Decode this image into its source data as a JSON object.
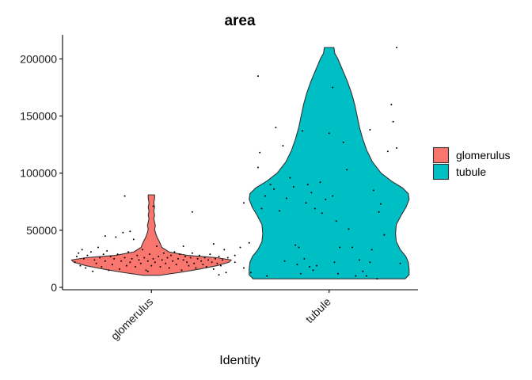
{
  "chart_data": {
    "type": "violin",
    "title": "area",
    "xlabel": "Identity",
    "ylabel": "",
    "categories": [
      "glomerulus",
      "tubule"
    ],
    "colors": {
      "glomerulus": "#F8766D",
      "tubule": "#00BFC4"
    },
    "ylim": [
      0,
      210000
    ],
    "yticks": [
      0,
      50000,
      100000,
      150000,
      200000
    ],
    "ytick_labels": [
      "0",
      "50000",
      "100000",
      "150000",
      "200000"
    ],
    "legend": {
      "position": "right",
      "entries": [
        "glomerulus",
        "tubule"
      ]
    },
    "grid": false,
    "violins": [
      {
        "name": "glomerulus",
        "range": [
          10500,
          81000
        ],
        "density": [
          [
            10500,
            0.1
          ],
          [
            13000,
            0.35
          ],
          [
            16000,
            0.6
          ],
          [
            19000,
            0.82
          ],
          [
            22000,
            0.97
          ],
          [
            24000,
            1.0
          ],
          [
            26000,
            0.82
          ],
          [
            28000,
            0.45
          ],
          [
            31000,
            0.22
          ],
          [
            35000,
            0.13
          ],
          [
            40000,
            0.1
          ],
          [
            44000,
            0.07
          ],
          [
            48000,
            0.05
          ],
          [
            51000,
            0.04
          ],
          [
            54000,
            0.05
          ],
          [
            57000,
            0.04
          ],
          [
            60000,
            0.03
          ],
          [
            63000,
            0.04
          ],
          [
            67000,
            0.03
          ],
          [
            70000,
            0.04
          ],
          [
            74000,
            0.03
          ],
          [
            78000,
            0.04
          ],
          [
            81000,
            0.04
          ]
        ],
        "points": [
          [
            -0.43,
            22000
          ],
          [
            -0.42,
            27000
          ],
          [
            -0.41,
            30000
          ],
          [
            -0.4,
            19000
          ],
          [
            -0.39,
            33000
          ],
          [
            -0.38,
            25000
          ],
          [
            -0.37,
            17000
          ],
          [
            -0.36,
            28000
          ],
          [
            -0.34,
            31000
          ],
          [
            -0.33,
            14000
          ],
          [
            -0.32,
            24000
          ],
          [
            -0.31,
            21000
          ],
          [
            -0.3,
            35000
          ],
          [
            -0.29,
            26000
          ],
          [
            -0.28,
            18000
          ],
          [
            -0.27,
            29000
          ],
          [
            -0.26,
            23000
          ],
          [
            -0.25,
            32000
          ],
          [
            -0.24,
            15000
          ],
          [
            -0.23,
            27000
          ],
          [
            -0.22,
            20000
          ],
          [
            -0.21,
            25000
          ],
          [
            -0.2,
            44000
          ],
          [
            -0.19,
            29000
          ],
          [
            -0.18,
            16000
          ],
          [
            -0.17,
            23000
          ],
          [
            -0.16,
            48000
          ],
          [
            -0.15,
            26000
          ],
          [
            -0.14,
            19000
          ],
          [
            -0.13,
            31000
          ],
          [
            -0.12,
            22000
          ],
          [
            -0.11,
            25000
          ],
          [
            -0.1,
            42000
          ],
          [
            -0.09,
            18000
          ],
          [
            -0.08,
            28000
          ],
          [
            -0.07,
            24000
          ],
          [
            -0.06,
            21000
          ],
          [
            -0.05,
            33000
          ],
          [
            -0.04,
            26000
          ],
          [
            -0.03,
            15000
          ],
          [
            -0.02,
            23000
          ],
          [
            -0.01,
            29000
          ],
          [
            0.0,
            19000
          ],
          [
            0.01,
            25000
          ],
          [
            0.02,
            22000
          ],
          [
            0.03,
            36000
          ],
          [
            0.04,
            27000
          ],
          [
            0.05,
            18000
          ],
          [
            0.06,
            24000
          ],
          [
            0.07,
            30000
          ],
          [
            0.08,
            21000
          ],
          [
            0.09,
            26000
          ],
          [
            0.1,
            17000
          ],
          [
            0.11,
            28000
          ],
          [
            0.12,
            23000
          ],
          [
            0.13,
            31000
          ],
          [
            0.14,
            20000
          ],
          [
            0.15,
            25000
          ],
          [
            0.16,
            29000
          ],
          [
            0.17,
            15000
          ],
          [
            0.18,
            24000
          ],
          [
            0.19,
            27000
          ],
          [
            0.2,
            22000
          ],
          [
            0.21,
            19000
          ],
          [
            0.22,
            26000
          ],
          [
            0.23,
            30000
          ],
          [
            0.24,
            21000
          ],
          [
            0.25,
            17000
          ],
          [
            0.26,
            25000
          ],
          [
            0.27,
            28000
          ],
          [
            0.28,
            23000
          ],
          [
            0.29,
            20000
          ],
          [
            0.3,
            26000
          ],
          [
            0.31,
            18000
          ],
          [
            0.32,
            24000
          ],
          [
            0.33,
            29000
          ],
          [
            0.34,
            22000
          ],
          [
            0.35,
            16000
          ],
          [
            0.36,
            25000
          ],
          [
            0.37,
            21000
          ],
          [
            0.38,
            27000
          ],
          [
            0.39,
            19000
          ],
          [
            0.4,
            24000
          ],
          [
            0.41,
            33000
          ],
          [
            0.42,
            13000
          ],
          [
            0.43,
            26000
          ],
          [
            -0.15,
            80000
          ],
          [
            0.01,
            71000
          ],
          [
            0.23,
            66000
          ],
          [
            0.52,
            74000
          ],
          [
            -0.26,
            45000
          ],
          [
            -0.12,
            49000
          ],
          [
            0.35,
            38000
          ],
          [
            0.18,
            36000
          ],
          [
            0.5,
            35000
          ],
          [
            0.55,
            39000
          ],
          [
            0.56,
            13000
          ],
          [
            0.52,
            17000
          ],
          [
            0.47,
            22000
          ],
          [
            0.47,
            28000
          ],
          [
            -0.02,
            14000
          ],
          [
            0.38,
            11000
          ]
        ]
      },
      {
        "name": "tubule",
        "range": [
          7500,
          210000
        ],
        "density": [
          [
            7500,
            0.95
          ],
          [
            11000,
            1.0
          ],
          [
            16000,
            1.0
          ],
          [
            22000,
            0.99
          ],
          [
            27000,
            0.96
          ],
          [
            33000,
            0.89
          ],
          [
            40000,
            0.84
          ],
          [
            47000,
            0.83
          ],
          [
            55000,
            0.84
          ],
          [
            63000,
            0.9
          ],
          [
            70000,
            0.96
          ],
          [
            77000,
            1.0
          ],
          [
            82000,
            0.99
          ],
          [
            87000,
            0.92
          ],
          [
            93000,
            0.78
          ],
          [
            100000,
            0.65
          ],
          [
            110000,
            0.54
          ],
          [
            120000,
            0.47
          ],
          [
            130000,
            0.42
          ],
          [
            140000,
            0.38
          ],
          [
            150000,
            0.35
          ],
          [
            160000,
            0.32
          ],
          [
            170000,
            0.28
          ],
          [
            180000,
            0.23
          ],
          [
            190000,
            0.17
          ],
          [
            200000,
            0.11
          ],
          [
            205000,
            0.07
          ],
          [
            210000,
            0.06
          ]
        ],
        "points": [
          [
            -0.4,
            185000
          ],
          [
            -0.39,
            118000
          ],
          [
            -0.4,
            105000
          ],
          [
            -0.38,
            69000
          ],
          [
            -0.36,
            80000
          ],
          [
            -0.35,
            10000
          ],
          [
            -0.33,
            90000
          ],
          [
            -0.31,
            86000
          ],
          [
            -0.28,
            67000
          ],
          [
            -0.26,
            124000
          ],
          [
            -0.25,
            23000
          ],
          [
            -0.24,
            78000
          ],
          [
            -0.22,
            96000
          ],
          [
            -0.2,
            88000
          ],
          [
            -0.19,
            37000
          ],
          [
            -0.18,
            20000
          ],
          [
            -0.17,
            35000
          ],
          [
            -0.16,
            12000
          ],
          [
            -0.15,
            137000
          ],
          [
            -0.14,
            25000
          ],
          [
            -0.13,
            74000
          ],
          [
            -0.12,
            90000
          ],
          [
            -0.1,
            83000
          ],
          [
            -0.09,
            15000
          ],
          [
            -0.08,
            69000
          ],
          [
            -0.07,
            19000
          ],
          [
            -0.05,
            92000
          ],
          [
            -0.04,
            65000
          ],
          [
            -0.02,
            77000
          ],
          [
            0.0,
            135000
          ],
          [
            0.02,
            175000
          ],
          [
            0.02,
            80000
          ],
          [
            0.03,
            22000
          ],
          [
            0.04,
            58000
          ],
          [
            0.05,
            12000
          ],
          [
            0.06,
            35000
          ],
          [
            0.08,
            127000
          ],
          [
            0.1,
            103000
          ],
          [
            0.13,
            35000
          ],
          [
            0.15,
            10000
          ],
          [
            0.17,
            24000
          ],
          [
            0.19,
            14000
          ],
          [
            0.21,
            10000
          ],
          [
            0.23,
            22000
          ],
          [
            0.24,
            33000
          ],
          [
            0.25,
            85000
          ],
          [
            0.27,
            7500
          ],
          [
            0.28,
            66000
          ],
          [
            0.29,
            73000
          ],
          [
            0.31,
            46000
          ],
          [
            0.33,
            119000
          ],
          [
            0.35,
            160000
          ],
          [
            0.36,
            145000
          ],
          [
            0.38,
            122000
          ],
          [
            0.38,
            210000
          ],
          [
            0.4,
            21000
          ],
          [
            0.23,
            138000
          ],
          [
            -0.3,
            140000
          ],
          [
            0.11,
            51000
          ],
          [
            -0.11,
            18000
          ]
        ]
      }
    ]
  }
}
